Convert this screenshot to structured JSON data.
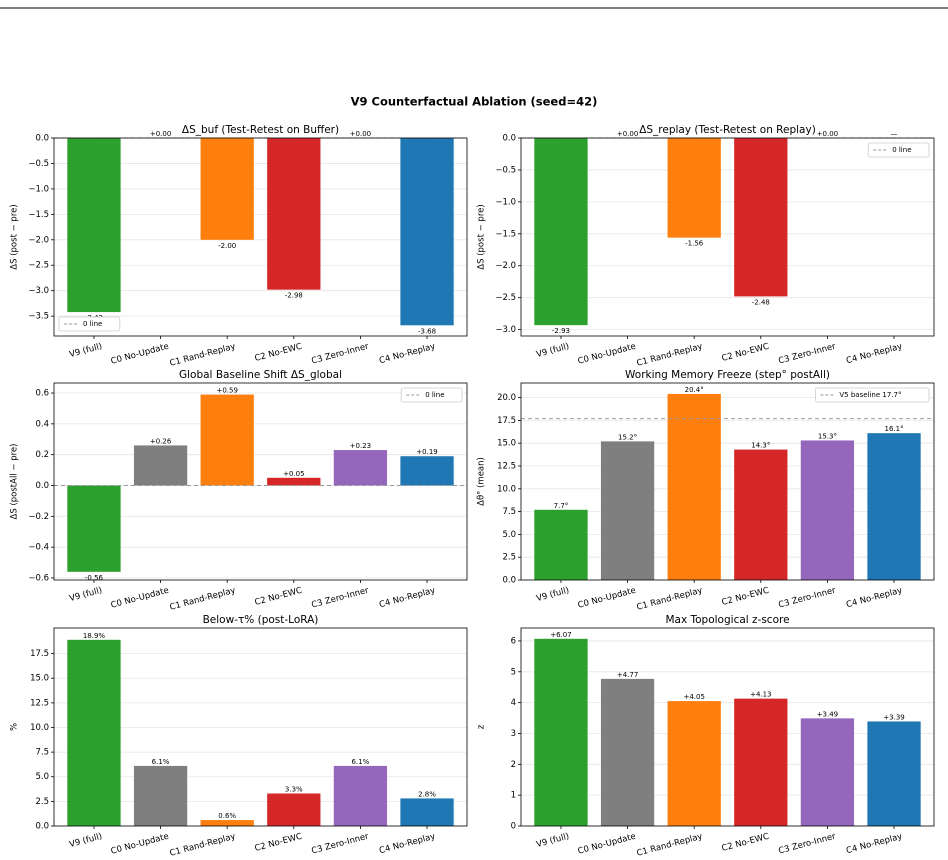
{
  "title": "V9 Counterfactual Ablation  (seed=42)",
  "chart_data": [
    {
      "type": "bar",
      "title": "ΔS_buf  (Test-Retest on Buffer)",
      "ylabel": "ΔS (post − pre)",
      "categories": [
        "V9 (full)",
        "C0 No-Update",
        "C1 Rand-Replay",
        "C2 No-EWC",
        "C3 Zero-Inner",
        "C4 No-Replay"
      ],
      "values": [
        -3.42,
        0,
        -2.0,
        -2.98,
        0,
        -3.68
      ],
      "value_labels": [
        "-3.42",
        "+0.00",
        "-2.00",
        "-2.98",
        "+0.00",
        "-3.68"
      ],
      "colors": [
        "#2ca02c",
        "#7f7f7f",
        "#ff7f0e",
        "#d62728",
        "#9467bd",
        "#1f77b4"
      ],
      "ylim": [
        -3.89,
        0
      ],
      "yticks": [
        {
          "value": -3.5,
          "label": "−3.5"
        },
        {
          "value": -3,
          "label": "−3.0"
        },
        {
          "value": -2.5,
          "label": "−2.5"
        },
        {
          "value": -2,
          "label": "−2.0"
        },
        {
          "value": -1.5,
          "label": "−1.5"
        },
        {
          "value": -1,
          "label": "−1.0"
        },
        {
          "value": -0.5,
          "label": "−0.5"
        },
        {
          "value": 0,
          "label": "0.0"
        }
      ],
      "grid": true,
      "reference_line": {
        "value": 0,
        "label": "0 line"
      },
      "legend": "lower left"
    },
    {
      "type": "bar",
      "title": "ΔS_replay  (Test-Retest on Replay)",
      "ylabel": "ΔS (post − pre)",
      "categories": [
        "V9 (full)",
        "C0 No-Update",
        "C1 Rand-Replay",
        "C2 No-EWC",
        "C3 Zero-Inner",
        "C4 No-Replay"
      ],
      "values": [
        -2.93,
        0,
        -1.56,
        -2.48,
        0,
        null
      ],
      "value_labels": [
        "-2.93",
        "+0.00",
        "-1.56",
        "-2.48",
        "+0.00",
        "—"
      ],
      "colors": [
        "#2ca02c",
        "#7f7f7f",
        "#ff7f0e",
        "#d62728",
        "#9467bd",
        "#1f77b4"
      ],
      "ylim": [
        -3.1,
        0
      ],
      "yticks": [
        {
          "value": -3,
          "label": "−3.0"
        },
        {
          "value": -2.5,
          "label": "−2.5"
        },
        {
          "value": -2,
          "label": "−2.0"
        },
        {
          "value": -1.5,
          "label": "−1.5"
        },
        {
          "value": -1,
          "label": "−1.0"
        },
        {
          "value": -0.5,
          "label": "−0.5"
        },
        {
          "value": 0,
          "label": "0.0"
        }
      ],
      "grid": true,
      "reference_line": {
        "value": 0,
        "label": "0 line"
      },
      "legend": "upper right"
    },
    {
      "type": "bar",
      "title": "Global Baseline Shift  ΔS_global",
      "ylabel": "ΔS (postAll − pre)",
      "categories": [
        "V9 (full)",
        "C0 No-Update",
        "C1 Rand-Replay",
        "C2 No-EWC",
        "C3 Zero-Inner",
        "C4 No-Replay"
      ],
      "values": [
        -0.56,
        0.26,
        0.59,
        0.05,
        0.23,
        0.19
      ],
      "value_labels": [
        "-0.56",
        "+0.26",
        "+0.59",
        "+0.05",
        "+0.23",
        "+0.19"
      ],
      "colors": [
        "#2ca02c",
        "#7f7f7f",
        "#ff7f0e",
        "#d62728",
        "#9467bd",
        "#1f77b4"
      ],
      "ylim": [
        -0.613,
        0.665
      ],
      "yticks": [
        {
          "value": -0.6,
          "label": "−0.6"
        },
        {
          "value": -0.4,
          "label": "−0.4"
        },
        {
          "value": -0.2,
          "label": "−0.2"
        },
        {
          "value": 0,
          "label": "0.0"
        },
        {
          "value": 0.2,
          "label": "0.2"
        },
        {
          "value": 0.4,
          "label": "0.4"
        },
        {
          "value": 0.6,
          "label": "0.6"
        }
      ],
      "grid": true,
      "reference_line": {
        "value": 0,
        "label": "0 line"
      },
      "legend": "upper right"
    },
    {
      "type": "bar",
      "title": "Working Memory Freeze  (step° postAll)",
      "ylabel": "Δθ° (mean)",
      "categories": [
        "V9 (full)",
        "C0 No-Update",
        "C1 Rand-Replay",
        "C2 No-EWC",
        "C3 Zero-Inner",
        "C4 No-Replay"
      ],
      "values": [
        7.7,
        15.2,
        20.4,
        14.3,
        15.3,
        16.1
      ],
      "value_labels": [
        "7.7°",
        "15.2°",
        "20.4°",
        "14.3°",
        "15.3°",
        "16.1°"
      ],
      "colors": [
        "#2ca02c",
        "#7f7f7f",
        "#ff7f0e",
        "#d62728",
        "#9467bd",
        "#1f77b4"
      ],
      "ylim": [
        0,
        21.6
      ],
      "yticks": [
        {
          "value": 0,
          "label": "0.0"
        },
        {
          "value": 2.5,
          "label": "2.5"
        },
        {
          "value": 5,
          "label": "5.0"
        },
        {
          "value": 7.5,
          "label": "7.5"
        },
        {
          "value": 10,
          "label": "10.0"
        },
        {
          "value": 12.5,
          "label": "12.5"
        },
        {
          "value": 15,
          "label": "15.0"
        },
        {
          "value": 17.5,
          "label": "17.5"
        },
        {
          "value": 20,
          "label": "20.0"
        }
      ],
      "grid": true,
      "reference_line": {
        "value": 17.7,
        "label": "V5 baseline 17.7°"
      },
      "legend": "upper right"
    },
    {
      "type": "bar",
      "title": "Below-τ% (post-LoRA)",
      "ylabel": "%",
      "categories": [
        "V9 (full)",
        "C0 No-Update",
        "C1 Rand-Replay",
        "C2 No-EWC",
        "C3 Zero-Inner",
        "C4 No-Replay"
      ],
      "values": [
        18.9,
        6.1,
        0.6,
        3.3,
        6.1,
        2.8
      ],
      "value_labels": [
        "18.9%",
        "6.1%",
        "0.6%",
        "3.3%",
        "6.1%",
        "2.8%"
      ],
      "colors": [
        "#2ca02c",
        "#7f7f7f",
        "#ff7f0e",
        "#d62728",
        "#9467bd",
        "#1f77b4"
      ],
      "ylim": [
        0,
        20.1
      ],
      "yticks": [
        {
          "value": 0,
          "label": "0.0"
        },
        {
          "value": 2.5,
          "label": "2.5"
        },
        {
          "value": 5,
          "label": "5.0"
        },
        {
          "value": 7.5,
          "label": "7.5"
        },
        {
          "value": 10,
          "label": "10.0"
        },
        {
          "value": 12.5,
          "label": "12.5"
        },
        {
          "value": 15,
          "label": "15.0"
        },
        {
          "value": 17.5,
          "label": "17.5"
        }
      ],
      "grid": true
    },
    {
      "type": "bar",
      "title": "Max Topological z-score",
      "ylabel": "z",
      "categories": [
        "V9 (full)",
        "C0 No-Update",
        "C1 Rand-Replay",
        "C2 No-EWC",
        "C3 Zero-Inner",
        "C4 No-Replay"
      ],
      "values": [
        6.07,
        4.77,
        4.05,
        4.13,
        3.49,
        3.39
      ],
      "value_labels": [
        "+6.07",
        "+4.77",
        "+4.05",
        "+4.13",
        "+3.49",
        "+3.39"
      ],
      "colors": [
        "#2ca02c",
        "#7f7f7f",
        "#ff7f0e",
        "#d62728",
        "#9467bd",
        "#1f77b4"
      ],
      "ylim": [
        0,
        6.42
      ],
      "yticks": [
        0,
        1,
        2,
        3,
        4,
        5,
        6
      ],
      "grid": true
    }
  ]
}
